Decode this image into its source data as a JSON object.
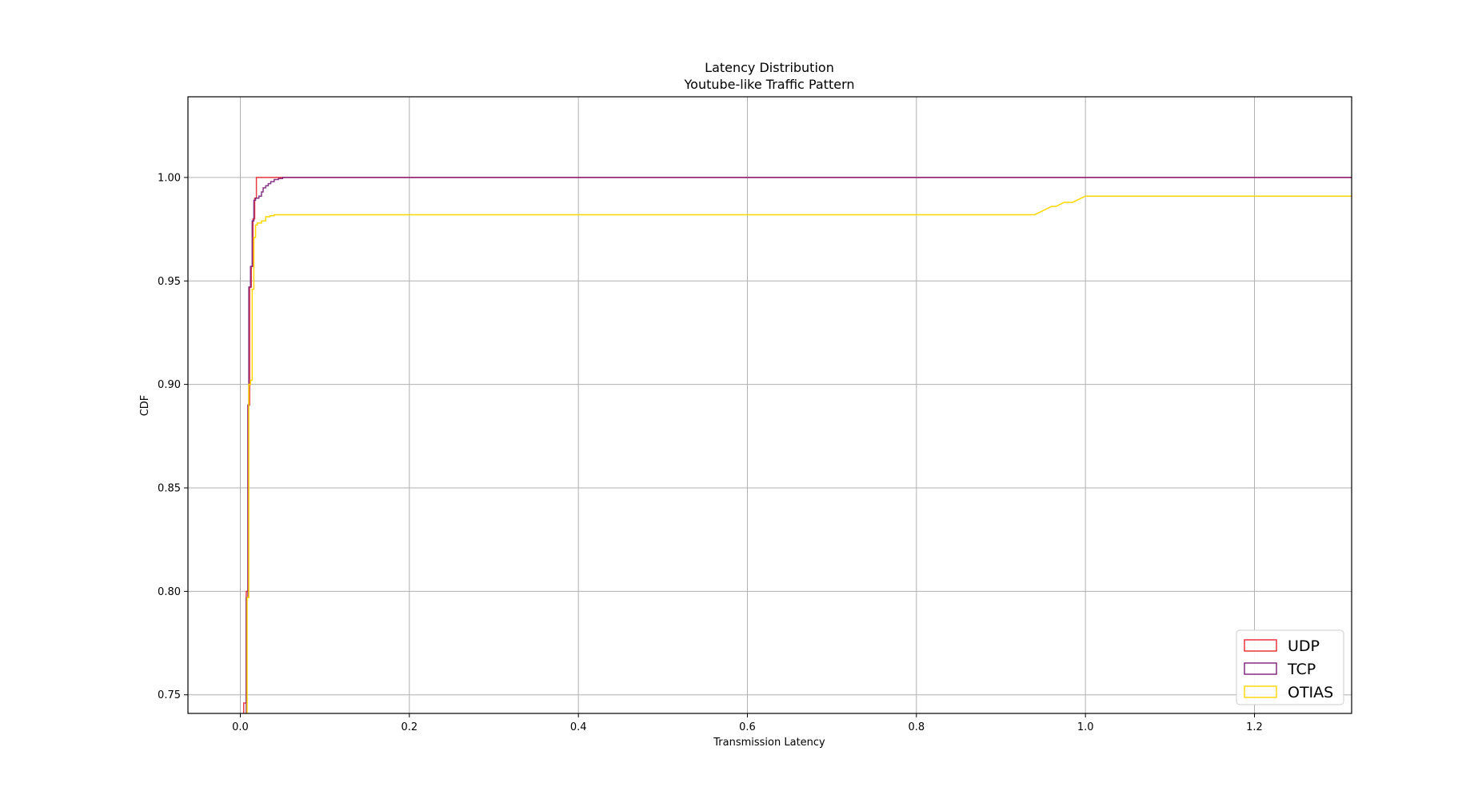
{
  "chart_data": {
    "type": "line",
    "subtype": "step-cdf",
    "title": "Latency Distribution",
    "subtitle": "Youtube-like Traffic Pattern",
    "xlabel": "Transmission Latency",
    "ylabel": "CDF",
    "xlim": [
      -0.062,
      1.315
    ],
    "ylim": [
      0.741,
      1.039
    ],
    "xticks": [
      0.0,
      0.2,
      0.4,
      0.6,
      0.8,
      1.0,
      1.2
    ],
    "xtick_labels": [
      "0.0",
      "0.2",
      "0.4",
      "0.6",
      "0.8",
      "1.0",
      "1.2"
    ],
    "yticks": [
      0.75,
      0.8,
      0.85,
      0.9,
      0.95,
      1.0
    ],
    "ytick_labels": [
      "0.75",
      "0.80",
      "0.85",
      "0.90",
      "0.95",
      "1.00"
    ],
    "grid": true,
    "legend_position": "bottom-right",
    "series": [
      {
        "name": "UDP",
        "color": "#e8272f",
        "x": [
          0.004,
          0.004,
          0.007,
          0.007,
          0.009,
          0.009,
          0.011,
          0.011,
          0.013,
          0.013,
          0.015,
          0.015,
          0.017,
          0.017,
          0.019,
          0.019,
          1.315
        ],
        "y": [
          0.741,
          0.746,
          0.746,
          0.8,
          0.8,
          0.89,
          0.89,
          0.947,
          0.947,
          0.957,
          0.957,
          0.98,
          0.98,
          0.99,
          0.99,
          1.0,
          1.0
        ]
      },
      {
        "name": "TCP",
        "color": "#7b1e7a",
        "x": [
          0.007,
          0.007,
          0.009,
          0.009,
          0.01,
          0.01,
          0.012,
          0.012,
          0.014,
          0.014,
          0.016,
          0.016,
          0.018,
          0.018,
          0.022,
          0.022,
          0.025,
          0.025,
          0.027,
          0.027,
          0.03,
          0.03,
          0.033,
          0.033,
          0.036,
          0.036,
          0.04,
          0.04,
          0.045,
          0.045,
          0.05,
          0.05,
          1.315
        ],
        "y": [
          0.741,
          0.797,
          0.797,
          0.89,
          0.89,
          0.947,
          0.947,
          0.957,
          0.957,
          0.979,
          0.979,
          0.989,
          0.989,
          0.99,
          0.99,
          0.991,
          0.991,
          0.993,
          0.993,
          0.995,
          0.995,
          0.996,
          0.996,
          0.997,
          0.997,
          0.998,
          0.998,
          0.999,
          0.999,
          0.9995,
          0.9995,
          1.0,
          1.0
        ]
      },
      {
        "name": "OTIAS",
        "color": "#ffd700",
        "x": [
          0.008,
          0.008,
          0.01,
          0.01,
          0.012,
          0.012,
          0.014,
          0.014,
          0.016,
          0.016,
          0.018,
          0.018,
          0.02,
          0.02,
          0.025,
          0.025,
          0.03,
          0.03,
          0.035,
          0.035,
          0.04,
          0.04,
          0.05,
          0.05,
          0.94,
          0.945,
          0.95,
          0.955,
          0.96,
          0.965,
          0.97,
          0.975,
          0.98,
          0.985,
          0.99,
          0.995,
          1.0,
          1.005,
          1.01,
          1.315
        ],
        "y": [
          0.741,
          0.797,
          0.797,
          0.9,
          0.9,
          0.902,
          0.902,
          0.946,
          0.946,
          0.971,
          0.971,
          0.977,
          0.977,
          0.978,
          0.978,
          0.979,
          0.979,
          0.981,
          0.981,
          0.9815,
          0.9815,
          0.982,
          0.982,
          0.982,
          0.982,
          0.983,
          0.984,
          0.985,
          0.986,
          0.986,
          0.987,
          0.988,
          0.988,
          0.988,
          0.989,
          0.99,
          0.991,
          0.991,
          0.991,
          0.991
        ]
      }
    ]
  }
}
